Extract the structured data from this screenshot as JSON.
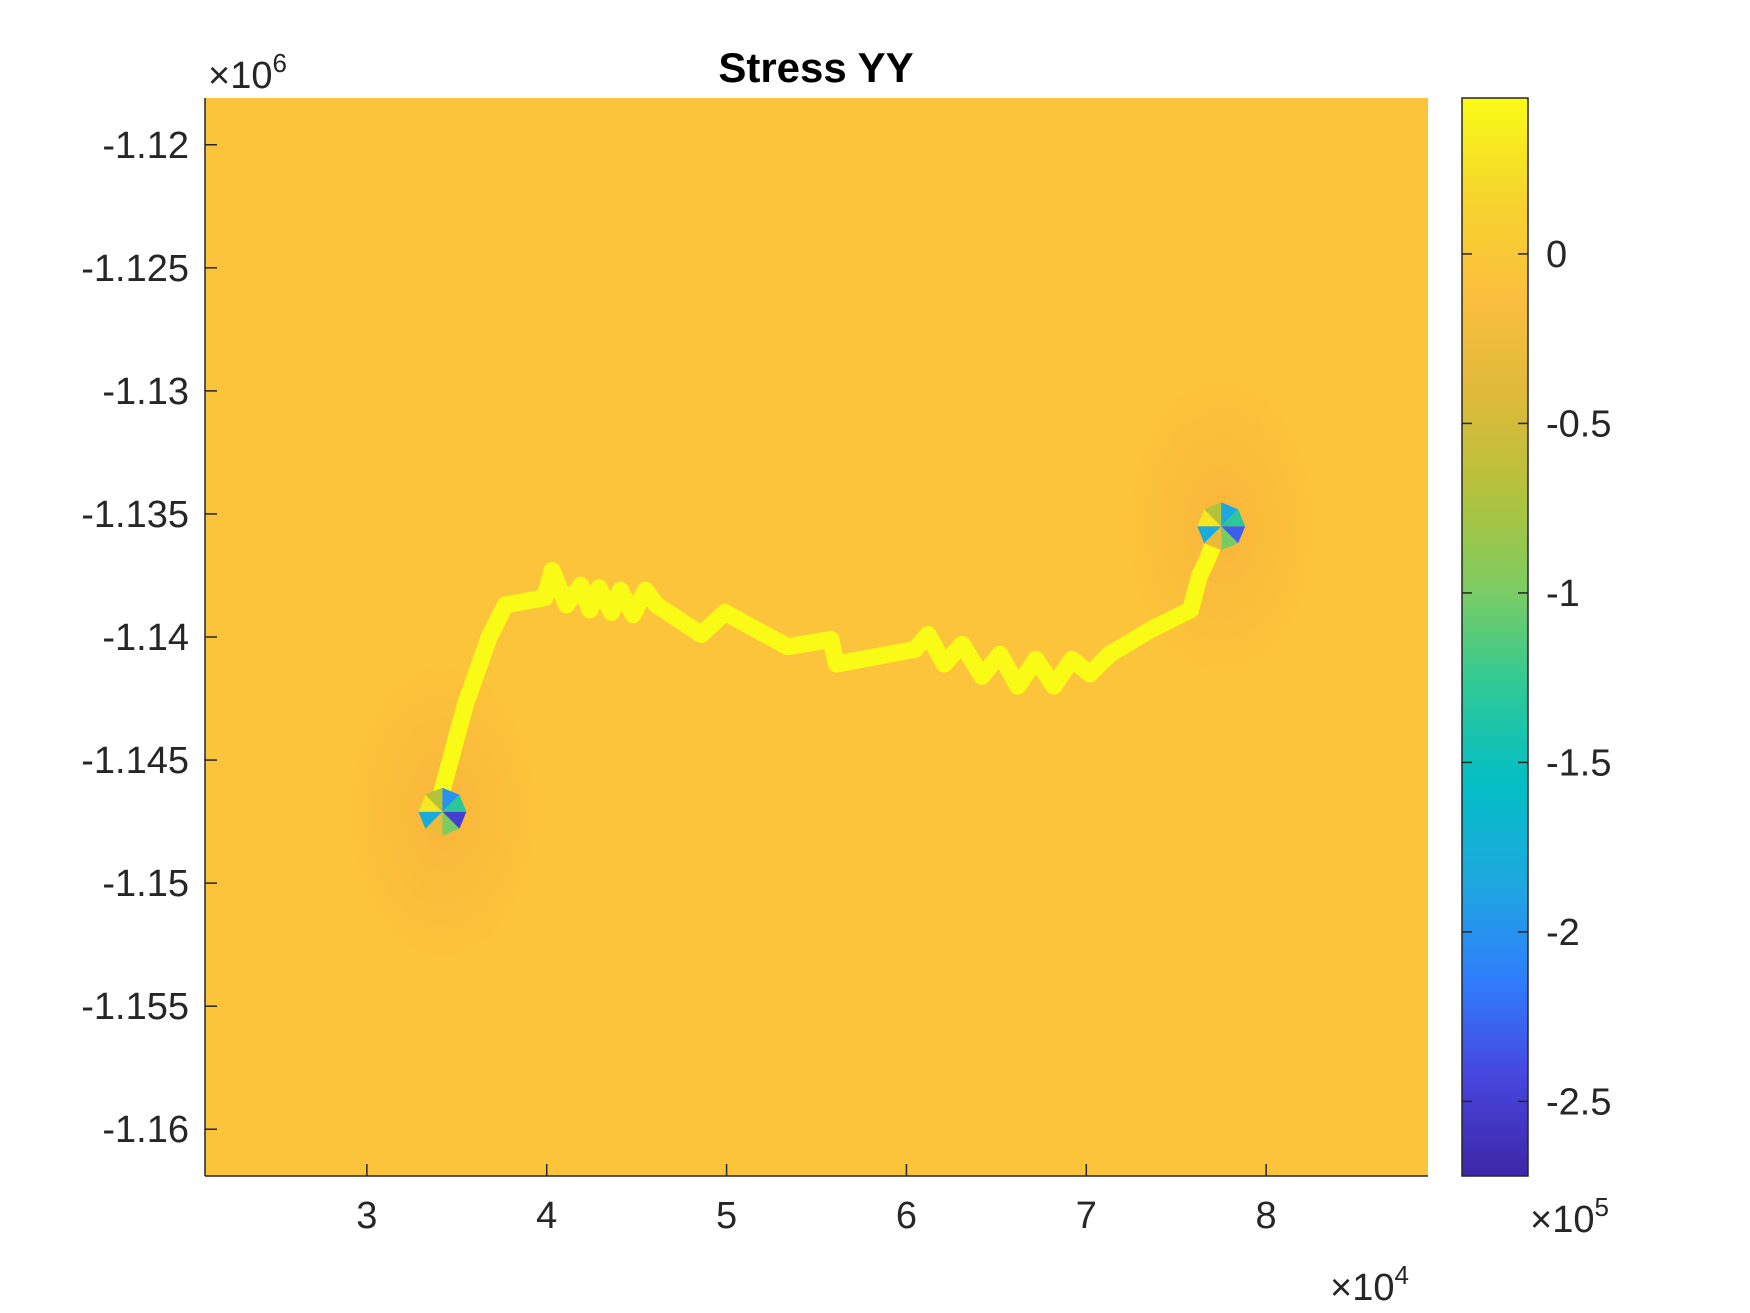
{
  "chart_data": {
    "type": "heatmap",
    "title": "Stress YY",
    "xlabel": "",
    "ylabel": "",
    "x_multiplier": "×10",
    "x_multiplier_exp": "4",
    "y_multiplier": "×10",
    "y_multiplier_exp": "6",
    "xlim": [
      2.1,
      8.9
    ],
    "ylim": [
      -1.1619,
      -1.1181
    ],
    "x_ticks": [
      3,
      4,
      5,
      6,
      7,
      8
    ],
    "y_ticks": [
      -1.12,
      -1.125,
      -1.13,
      -1.135,
      -1.14,
      -1.145,
      -1.15,
      -1.155,
      -1.16
    ],
    "x_tick_labels": [
      "3",
      "4",
      "5",
      "6",
      "7",
      "8"
    ],
    "y_tick_labels": [
      "-1.12",
      "-1.125",
      "-1.13",
      "-1.135",
      "-1.14",
      "-1.145",
      "-1.15",
      "-1.155",
      "-1.16"
    ],
    "background_value": 0.0,
    "crack_path": {
      "name": "",
      "value": 0.45,
      "x": [
        3.42,
        3.52,
        3.55,
        3.68,
        3.77,
        3.99,
        4.03,
        4.11,
        4.19,
        4.24,
        4.29,
        4.36,
        4.41,
        4.48,
        4.55,
        4.61,
        4.86,
        4.99,
        5.34,
        5.58,
        5.61,
        6.05,
        6.12,
        6.21,
        6.31,
        6.42,
        6.52,
        6.62,
        6.72,
        6.82,
        6.92,
        7.02,
        7.13,
        7.36,
        7.58,
        7.63,
        7.67,
        7.72
      ],
      "y": [
        -1.1462,
        -1.1435,
        -1.1427,
        -1.14,
        -1.1387,
        -1.1384,
        -1.1373,
        -1.1387,
        -1.1379,
        -1.1389,
        -1.138,
        -1.139,
        -1.1381,
        -1.1391,
        -1.1381,
        -1.1387,
        -1.1399,
        -1.139,
        -1.1404,
        -1.1401,
        -1.1411,
        -1.1405,
        -1.1399,
        -1.1411,
        -1.1403,
        -1.1416,
        -1.1407,
        -1.142,
        -1.1409,
        -1.142,
        -1.1409,
        -1.1415,
        -1.1407,
        -1.1397,
        -1.1389,
        -1.1375,
        -1.1369,
        -1.136
      ]
    },
    "stress_concentrations": [
      {
        "x": 3.42,
        "y": -1.1471,
        "min_value": -2.5
      },
      {
        "x": 7.75,
        "y": -1.1355,
        "min_value": -2.3
      }
    ],
    "colorbar": {
      "colormap": "parula",
      "multiplier": "×10",
      "multiplier_exp": "5",
      "range": [
        -2.72,
        0.46
      ],
      "ticks": [
        0,
        -0.5,
        -1,
        -1.5,
        -2,
        -2.5
      ],
      "tick_labels": [
        "0",
        "-0.5",
        "-1",
        "-1.5",
        "-2",
        "-2.5"
      ],
      "colors": [
        "#3e26a8",
        "#4745dd",
        "#2f7efb",
        "#1ea8e0",
        "#03bec5",
        "#2fc996",
        "#7dcc61",
        "#b4c23b",
        "#e0b93a",
        "#fbbf3d",
        "#f6d52c",
        "#f9fb15"
      ]
    }
  }
}
